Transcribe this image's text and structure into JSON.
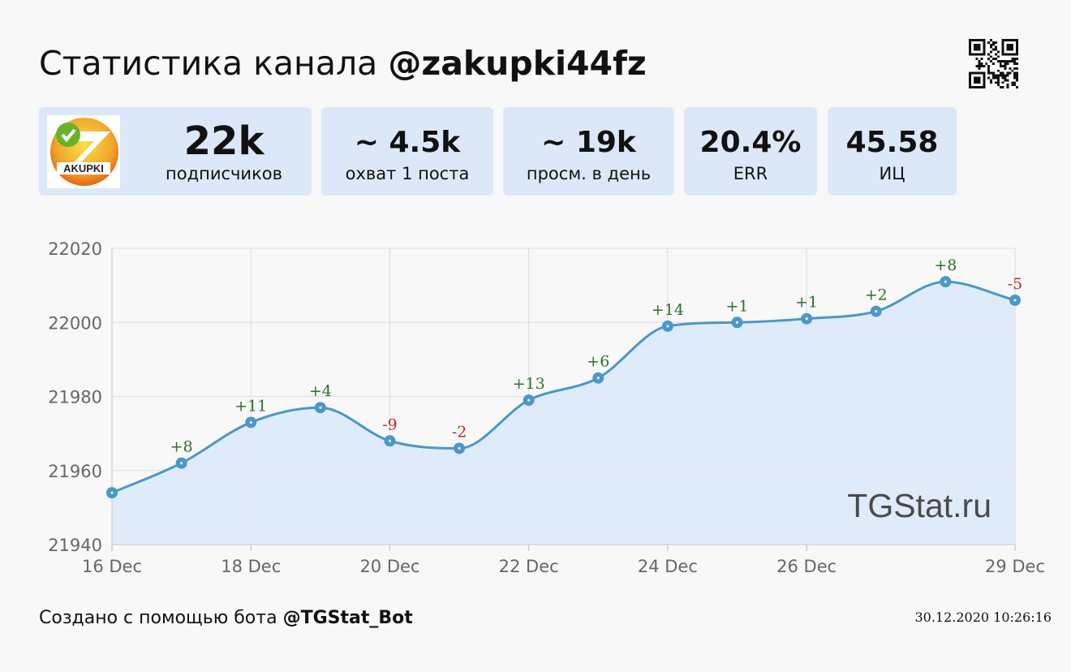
{
  "header": {
    "title_prefix": "Статистика канала",
    "channel": "@zakupki44fz"
  },
  "logo": {
    "text": "AKUPKI"
  },
  "stats": [
    {
      "value": "22k",
      "label": "подписчиков"
    },
    {
      "value": "~ 4.5k",
      "label": "охват 1 поста"
    },
    {
      "value": "~ 19k",
      "label": "просм. в день"
    },
    {
      "value": "20.4%",
      "label": "ERR"
    },
    {
      "value": "45.58",
      "label": "ИЦ"
    }
  ],
  "colors": {
    "card_bg": "#dce8f7",
    "line": "#4a97c8",
    "area": "#dde9f9",
    "positive": "#2e6e2e",
    "negative": "#c0281e",
    "watermark": "#4a4a4a"
  },
  "chart_data": {
    "type": "area",
    "watermark": "TGStat.ru",
    "ylim": [
      21940,
      22020
    ],
    "yticks": [
      21940,
      21960,
      21980,
      22000,
      22020
    ],
    "x_days": [
      16,
      17,
      18,
      19,
      20,
      21,
      22,
      23,
      24,
      25,
      26,
      27,
      28,
      29
    ],
    "x_tick_days": [
      16,
      18,
      20,
      22,
      24,
      26,
      29
    ],
    "x_tick_labels": [
      "16 Dec",
      "18 Dec",
      "20 Dec",
      "22 Dec",
      "24 Dec",
      "26 Dec",
      "29 Dec"
    ],
    "series": [
      {
        "values": [
          21954,
          21962,
          21973,
          21977,
          21968,
          21966,
          21979,
          21985,
          21999,
          22000,
          22001,
          22003,
          22011,
          22006
        ],
        "deltas": [
          "",
          "+8",
          "+11",
          "+4",
          "-9",
          "-2",
          "+13",
          "+6",
          "+14",
          "+1",
          "+1",
          "+2",
          "+8",
          "-5"
        ]
      }
    ],
    "grid": true
  },
  "footer": {
    "created_prefix": "Создано с помощью бота",
    "bot": "@TGStat_Bot",
    "timestamp": "30.12.2020 10:26:16"
  }
}
